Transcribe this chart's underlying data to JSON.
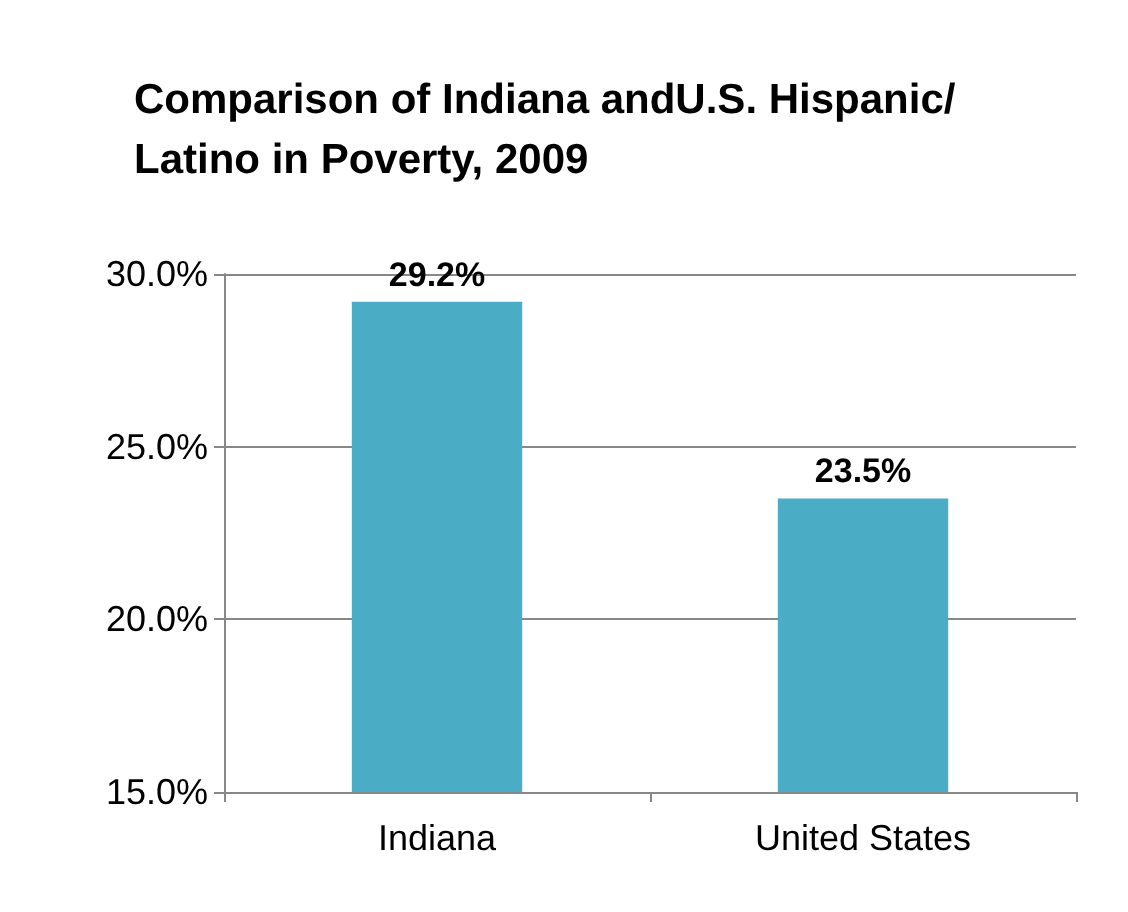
{
  "chart_data": {
    "type": "bar",
    "title": "Comparison of Indiana andU.S. Hispanic/Latino in Poverty, 2009",
    "categories": [
      "Indiana",
      "United States"
    ],
    "values": [
      29.2,
      23.5
    ],
    "value_labels": [
      "29.2%",
      "23.5%"
    ],
    "color": "#4bacc6",
    "ylim": [
      15,
      30
    ],
    "yticks": [
      {
        "value": 15,
        "label": "15.0%"
      },
      {
        "value": 20,
        "label": "20.0%"
      },
      {
        "value": 25,
        "label": "25.0%"
      },
      {
        "value": 30,
        "label": "30.0%"
      }
    ],
    "grid": true
  }
}
